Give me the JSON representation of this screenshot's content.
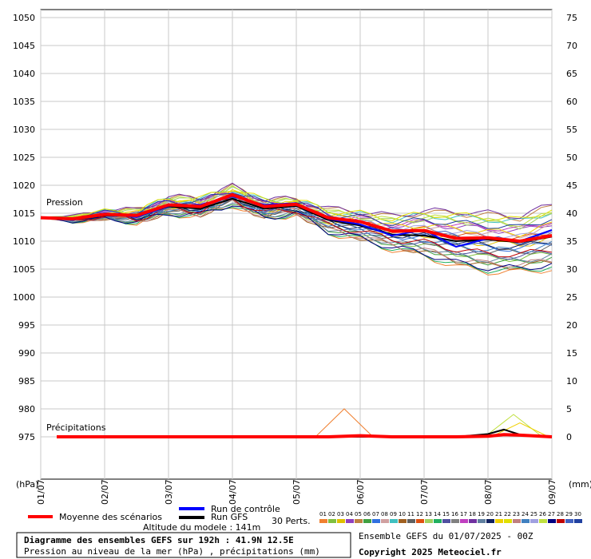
{
  "chart_data": {
    "type": "line",
    "title": "Diagramme des ensembles GEFS sur 192h : 41.9N 12.5E",
    "subtitle": "Pression au niveau de la mer (hPa) , précipitations (mm)",
    "ensemble_label": "Ensemble GEFS du 01/07/2025 - 00Z",
    "copyright": "Copyright 2025 Meteociel.fr",
    "altitude_label": "Altitude du modele : 141m",
    "left_axis_unit": "(hPa)",
    "right_axis_unit": "(mm)",
    "pressure_label": "Pression",
    "precip_label": "Précipitations",
    "left_ylim": [
      975,
      1050
    ],
    "right_ylim": [
      0,
      75
    ],
    "left_ticks": [
      "1050",
      "1045",
      "1040",
      "1035",
      "1030",
      "1025",
      "1020",
      "1015",
      "1010",
      "1005",
      "1000",
      "995",
      "990",
      "985",
      "980",
      "975"
    ],
    "right_ticks": [
      "75",
      "70",
      "65",
      "60",
      "55",
      "50",
      "45",
      "40",
      "35",
      "30",
      "25",
      "20",
      "15",
      "10",
      "5",
      "0"
    ],
    "x_ticks": [
      "01/07",
      "02/07",
      "03/07",
      "04/07",
      "05/07",
      "06/07",
      "07/07",
      "08/07",
      "09/07"
    ],
    "grid": true,
    "legend": {
      "mean": {
        "name": "Moyenne des scénarios",
        "color": "#ff0000"
      },
      "control": {
        "name": "Run de contrôle",
        "color": "#0000ff"
      },
      "gfs": {
        "name": "Run GFS",
        "color": "#000000"
      },
      "perts_label": "30 Perts.",
      "pert_numbers": [
        "01",
        "02",
        "03",
        "04",
        "05",
        "06",
        "07",
        "08",
        "09",
        "10",
        "11",
        "12",
        "13",
        "14",
        "15",
        "16",
        "17",
        "18",
        "19",
        "20",
        "21",
        "22",
        "23",
        "24",
        "25",
        "26",
        "27",
        "28",
        "29",
        "30"
      ]
    },
    "pert_colors": [
      "#f08030",
      "#80c040",
      "#e0c000",
      "#9040c0",
      "#c08040",
      "#40a040",
      "#3070e0",
      "#d0a0a0",
      "#40c0c0",
      "#a06020",
      "#606060",
      "#e05010",
      "#a0d060",
      "#20b060",
      "#5050a0",
      "#808080",
      "#c040c0",
      "#7030a0",
      "#6080a0",
      "#102060",
      "#f0d000",
      "#e0e000",
      "#c08080",
      "#4080c0",
      "#a0a0e0",
      "#c0e040",
      "#000080",
      "#c00000",
      "#4060c0",
      "#2040a0"
    ],
    "pressure_mean": {
      "x": [
        0,
        0.5,
        1,
        1.5,
        2,
        2.5,
        3,
        3.5,
        4,
        4.5,
        5,
        5.5,
        6,
        6.5,
        7,
        7.5,
        8
      ],
      "y": [
        1014.2,
        1014.0,
        1014.8,
        1014.6,
        1016.5,
        1016.2,
        1018.3,
        1016.2,
        1016.6,
        1014.2,
        1013.5,
        1011.8,
        1011.9,
        1010.5,
        1010.6,
        1010.0,
        1011.0
      ]
    },
    "pressure_control": {
      "x": [
        0,
        0.5,
        1,
        1.5,
        2,
        2.5,
        3,
        3.5,
        4,
        4.5,
        5,
        5.5,
        6,
        6.5,
        7,
        7.5,
        8
      ],
      "y": [
        1014.3,
        1013.8,
        1015.0,
        1014.3,
        1016.3,
        1016.5,
        1018.0,
        1016.5,
        1016.8,
        1014.0,
        1013.0,
        1011.0,
        1012.0,
        1009.0,
        1010.5,
        1010.0,
        1012.0
      ]
    },
    "pressure_gfs": {
      "x": [
        0,
        0.5,
        1,
        1.5,
        2,
        2.5,
        3,
        3.5,
        4,
        4.5,
        5,
        5.5,
        6,
        6.5,
        7,
        7.5,
        8
      ],
      "y": [
        1014.1,
        1013.9,
        1014.6,
        1014.5,
        1016.2,
        1015.8,
        1017.6,
        1015.8,
        1016.3,
        1013.8,
        1012.8,
        1011.2,
        1011.0,
        1010.0,
        1010.3,
        1009.8,
        1010.8
      ]
    },
    "pressure_spread": {
      "x": [
        0,
        0.5,
        1,
        1.5,
        2,
        2.5,
        3,
        3.5,
        4,
        4.5,
        5,
        5.5,
        6,
        6.5,
        7,
        7.5,
        8
      ],
      "low": [
        1014.0,
        1012.8,
        1013.7,
        1013.3,
        1014.8,
        1014.5,
        1016.5,
        1014.0,
        1014.8,
        1011.5,
        1010.2,
        1008.5,
        1007.3,
        1005.5,
        1004.5,
        1004.5,
        1005.0
      ],
      "high": [
        1014.5,
        1015.0,
        1015.7,
        1015.6,
        1017.8,
        1017.8,
        1019.8,
        1017.5,
        1017.5,
        1015.8,
        1015.3,
        1014.5,
        1015.4,
        1015.3,
        1015.0,
        1014.5,
        1016.5
      ]
    },
    "precip_mean": {
      "x": [
        0.25,
        0.5,
        1,
        1.5,
        2,
        2.5,
        3,
        3.5,
        4,
        4.5,
        5,
        5.5,
        6,
        6.5,
        7,
        7.25,
        7.5,
        8
      ],
      "y": [
        0,
        0,
        0,
        0,
        0,
        0,
        0,
        0,
        0,
        0,
        0.2,
        0,
        0,
        0,
        0.1,
        0.4,
        0.3,
        0
      ]
    },
    "precip_gfs": {
      "x": [
        0.25,
        0.5,
        1,
        1.5,
        2,
        2.5,
        3,
        3.5,
        4,
        4.5,
        5,
        5.5,
        6,
        6.5,
        7,
        7.25,
        7.5,
        8
      ],
      "y": [
        0,
        0,
        0,
        0,
        0,
        0,
        0,
        0,
        0,
        0,
        0,
        0,
        0,
        0,
        0.5,
        1.3,
        0.4,
        0
      ]
    },
    "precip_peaks": [
      {
        "x": 4.75,
        "y": 5.0,
        "pert": 1
      },
      {
        "x": 7.4,
        "y": 4.0,
        "pert": 26
      },
      {
        "x": 7.5,
        "y": 2.5,
        "pert": 21
      }
    ]
  }
}
